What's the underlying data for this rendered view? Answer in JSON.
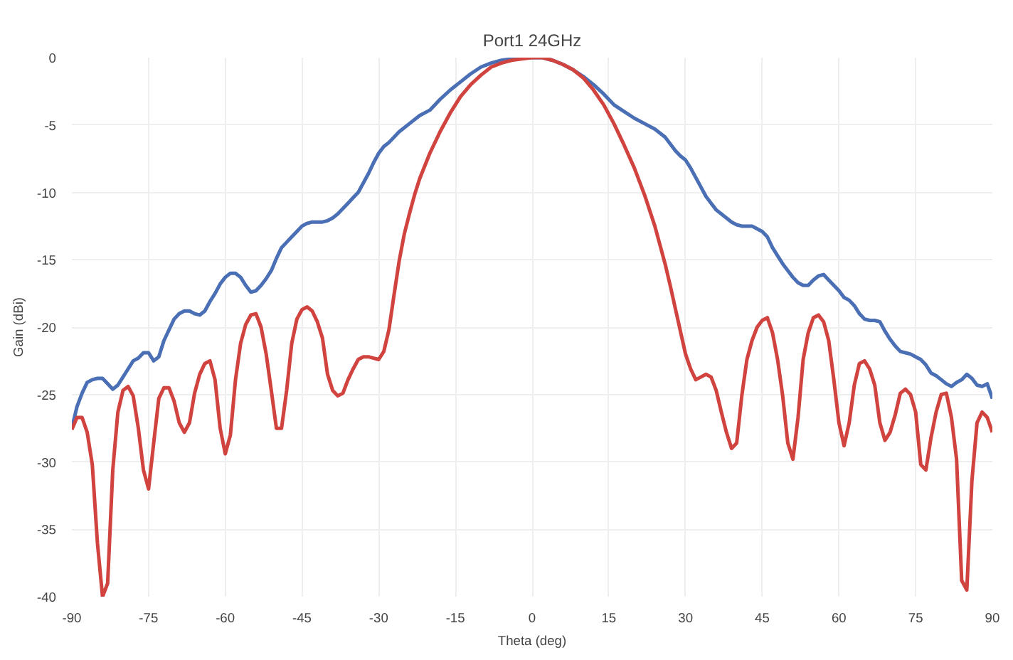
{
  "chart_data": {
    "type": "line",
    "title": "Port1 24GHz",
    "xlabel": "Theta (deg)",
    "ylabel": "Gain (dBi)",
    "xlim": [
      -90,
      90
    ],
    "ylim": [
      -40,
      0
    ],
    "xticks": [
      -90,
      -75,
      -60,
      -45,
      -30,
      -15,
      0,
      15,
      30,
      45,
      60,
      75,
      90
    ],
    "yticks": [
      -40,
      -35,
      -30,
      -25,
      -20,
      -15,
      -10,
      -5,
      0
    ],
    "grid": true,
    "marker": "none",
    "line_style": "solid",
    "series": [
      {
        "color": "#4a6fb5",
        "x": [
          -90,
          -89,
          -88,
          -87,
          -86,
          -85,
          -84,
          -83,
          -82,
          -81,
          -80,
          -79,
          -78,
          -77,
          -76,
          -75,
          -74,
          -73,
          -72,
          -71,
          -70,
          -69,
          -68,
          -67,
          -66,
          -65,
          -64,
          -63,
          -62,
          -61,
          -60,
          -59,
          -58,
          -57,
          -56,
          -55,
          -54,
          -53,
          -52,
          -51,
          -50,
          -49,
          -48,
          -47,
          -46,
          -45,
          -44,
          -43,
          -42,
          -41,
          -40,
          -39,
          -38,
          -37,
          -36,
          -35,
          -34,
          -33,
          -32,
          -31,
          -30,
          -29,
          -28,
          -26,
          -24,
          -22,
          -20,
          -18,
          -16,
          -14,
          -12,
          -10,
          -8,
          -6,
          -4,
          -2,
          0,
          2,
          4,
          6,
          8,
          10,
          12,
          14,
          16,
          18,
          20,
          22,
          24,
          26,
          28,
          29,
          30,
          31,
          32,
          33,
          34,
          35,
          36,
          37,
          38,
          39,
          40,
          41,
          42,
          43,
          44,
          45,
          46,
          47,
          48,
          49,
          50,
          51,
          52,
          53,
          54,
          55,
          56,
          57,
          58,
          59,
          60,
          61,
          62,
          63,
          64,
          65,
          66,
          67,
          68,
          69,
          70,
          71,
          72,
          73,
          74,
          75,
          76,
          77,
          78,
          79,
          80,
          81,
          82,
          83,
          84,
          85,
          86,
          87,
          88,
          89,
          90
        ],
        "values": [
          -27.5,
          -25.9,
          -24.9,
          -24.1,
          -23.9,
          -23.8,
          -23.8,
          -24.2,
          -24.6,
          -24.3,
          -23.7,
          -23.1,
          -22.5,
          -22.3,
          -21.9,
          -21.9,
          -22.5,
          -22.2,
          -21.0,
          -20.2,
          -19.4,
          -19.0,
          -18.8,
          -18.8,
          -19.0,
          -19.1,
          -18.8,
          -18.1,
          -17.5,
          -16.8,
          -16.3,
          -16.0,
          -16.0,
          -16.3,
          -16.9,
          -17.4,
          -17.3,
          -16.9,
          -16.4,
          -15.8,
          -14.9,
          -14.1,
          -13.7,
          -13.3,
          -12.9,
          -12.5,
          -12.3,
          -12.2,
          -12.2,
          -12.2,
          -12.1,
          -11.9,
          -11.6,
          -11.2,
          -10.8,
          -10.4,
          -10.0,
          -9.3,
          -8.6,
          -7.8,
          -7.1,
          -6.6,
          -6.3,
          -5.5,
          -4.9,
          -4.3,
          -3.9,
          -3.1,
          -2.4,
          -1.8,
          -1.2,
          -0.7,
          -0.4,
          -0.2,
          -0.1,
          0.0,
          0.0,
          0.0,
          -0.2,
          -0.5,
          -0.9,
          -1.4,
          -2.0,
          -2.7,
          -3.5,
          -4.0,
          -4.5,
          -4.9,
          -5.3,
          -5.9,
          -6.9,
          -7.3,
          -7.6,
          -8.2,
          -8.9,
          -9.6,
          -10.3,
          -10.8,
          -11.3,
          -11.6,
          -11.9,
          -12.2,
          -12.4,
          -12.5,
          -12.5,
          -12.5,
          -12.7,
          -12.9,
          -13.3,
          -14.1,
          -14.7,
          -15.3,
          -15.8,
          -16.3,
          -16.7,
          -16.9,
          -16.9,
          -16.5,
          -16.2,
          -16.1,
          -16.5,
          -16.9,
          -17.3,
          -17.8,
          -18.0,
          -18.4,
          -19.0,
          -19.4,
          -19.5,
          -19.5,
          -19.6,
          -20.3,
          -20.9,
          -21.4,
          -21.8,
          -21.9,
          -22.0,
          -22.2,
          -22.4,
          -22.8,
          -23.4,
          -23.6,
          -23.9,
          -24.2,
          -24.4,
          -24.1,
          -23.9,
          -23.5,
          -23.8,
          -24.3,
          -24.4,
          -24.2,
          -25.3
        ]
      },
      {
        "color": "#d0433f",
        "x": [
          -90,
          -89,
          -88,
          -87,
          -86,
          -85,
          -84,
          -83,
          -82,
          -81,
          -80,
          -79,
          -78,
          -77,
          -76,
          -75,
          -74,
          -73,
          -72,
          -71,
          -70,
          -69,
          -68,
          -67,
          -66,
          -65,
          -64,
          -63,
          -62,
          -61,
          -60,
          -59,
          -58,
          -57,
          -56,
          -55,
          -54,
          -53,
          -52,
          -51,
          -50,
          -49,
          -48,
          -47,
          -46,
          -45,
          -44,
          -43,
          -42,
          -41,
          -40,
          -39,
          -38,
          -37,
          -36,
          -35,
          -34,
          -33,
          -32,
          -31,
          -30,
          -29,
          -28,
          -27,
          -26,
          -25,
          -24,
          -23,
          -22,
          -20,
          -18,
          -16,
          -14,
          -12,
          -10,
          -8,
          -6,
          -4,
          -2,
          0,
          2,
          4,
          6,
          8,
          10,
          12,
          14,
          16,
          18,
          20,
          22,
          24,
          26,
          27,
          28,
          29,
          30,
          31,
          32,
          33,
          34,
          35,
          36,
          37,
          38,
          39,
          40,
          41,
          42,
          43,
          44,
          45,
          46,
          47,
          48,
          49,
          50,
          51,
          52,
          53,
          54,
          55,
          56,
          57,
          58,
          59,
          60,
          61,
          62,
          63,
          64,
          65,
          66,
          67,
          68,
          69,
          70,
          71,
          72,
          73,
          74,
          75,
          76,
          77,
          78,
          79,
          80,
          81,
          82,
          83,
          84,
          85,
          86,
          87,
          88,
          89,
          90
        ],
        "values": [
          -27.6,
          -26.7,
          -26.7,
          -27.8,
          -30.2,
          -36.0,
          -40.0,
          -39.0,
          -30.6,
          -26.3,
          -24.7,
          -24.4,
          -25.1,
          -27.5,
          -30.6,
          -32.0,
          -28.6,
          -25.3,
          -24.5,
          -24.5,
          -25.5,
          -27.1,
          -27.8,
          -27.1,
          -24.9,
          -23.5,
          -22.7,
          -22.5,
          -23.9,
          -27.5,
          -29.4,
          -28.0,
          -23.9,
          -21.2,
          -19.8,
          -19.1,
          -19.0,
          -20.0,
          -22.0,
          -24.7,
          -27.5,
          -27.5,
          -24.7,
          -21.2,
          -19.4,
          -18.7,
          -18.5,
          -18.8,
          -19.6,
          -20.8,
          -23.5,
          -24.7,
          -25.1,
          -24.9,
          -23.9,
          -23.1,
          -22.4,
          -22.2,
          -22.2,
          -22.3,
          -22.4,
          -21.8,
          -20.2,
          -17.6,
          -15.1,
          -13.1,
          -11.6,
          -10.2,
          -9.0,
          -7.1,
          -5.5,
          -4.1,
          -2.9,
          -2.0,
          -1.3,
          -0.7,
          -0.4,
          -0.2,
          -0.1,
          0.0,
          0.0,
          -0.2,
          -0.5,
          -0.9,
          -1.5,
          -2.4,
          -3.5,
          -4.9,
          -6.5,
          -8.2,
          -10.2,
          -12.5,
          -15.3,
          -16.9,
          -18.6,
          -20.3,
          -22.0,
          -23.1,
          -23.9,
          -23.7,
          -23.5,
          -23.7,
          -24.7,
          -26.3,
          -27.8,
          -29.0,
          -28.6,
          -25.1,
          -22.4,
          -21.0,
          -20.0,
          -19.5,
          -19.3,
          -20.4,
          -22.4,
          -25.1,
          -28.6,
          -29.8,
          -26.7,
          -22.4,
          -20.4,
          -19.3,
          -19.1,
          -19.6,
          -21.0,
          -23.9,
          -27.1,
          -28.8,
          -27.1,
          -24.3,
          -22.7,
          -22.5,
          -23.1,
          -24.3,
          -27.1,
          -28.4,
          -27.8,
          -26.5,
          -24.9,
          -24.6,
          -25.0,
          -26.3,
          -30.2,
          -30.6,
          -28.2,
          -26.3,
          -25.0,
          -24.9,
          -26.7,
          -29.8,
          -38.8,
          -39.5,
          -31.4,
          -27.1,
          -26.3,
          -26.7,
          -27.8
        ]
      }
    ]
  }
}
